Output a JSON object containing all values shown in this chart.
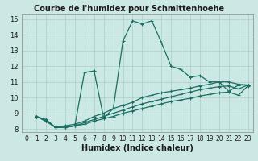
{
  "title": "Courbe de l'humidex pour Schmittenhoehe",
  "xlabel": "Humidex (Indice chaleur)",
  "bg_color": "#cce8e4",
  "grid_color": "#aacfcb",
  "line_color": "#1a6e62",
  "xlim": [
    -0.5,
    23.5
  ],
  "ylim": [
    7.8,
    15.3
  ],
  "xticks": [
    0,
    1,
    2,
    3,
    4,
    5,
    6,
    7,
    8,
    9,
    10,
    11,
    12,
    13,
    14,
    15,
    16,
    17,
    18,
    19,
    20,
    21,
    22,
    23
  ],
  "yticks": [
    8,
    9,
    10,
    11,
    12,
    13,
    14,
    15
  ],
  "line1_x": [
    1,
    2,
    3,
    4,
    5,
    6,
    7,
    8,
    9,
    10,
    11,
    12,
    13,
    14,
    15,
    16,
    17,
    18,
    19,
    20,
    21,
    22,
    23
  ],
  "line1_y": [
    8.8,
    8.6,
    8.1,
    8.1,
    8.2,
    11.6,
    11.7,
    8.7,
    9.3,
    13.6,
    14.9,
    14.7,
    14.9,
    13.5,
    12.0,
    11.8,
    11.3,
    11.4,
    11.0,
    11.0,
    10.4,
    10.8,
    10.8
  ],
  "line2_x": [
    1,
    2,
    3,
    4,
    5,
    6,
    7,
    8,
    9,
    10,
    11,
    12,
    13,
    14,
    15,
    16,
    17,
    18,
    19,
    20,
    21,
    22,
    23
  ],
  "line2_y": [
    8.8,
    8.5,
    8.1,
    8.2,
    8.3,
    8.5,
    8.8,
    9.0,
    9.3,
    9.5,
    9.7,
    10.0,
    10.15,
    10.3,
    10.4,
    10.5,
    10.6,
    10.75,
    10.85,
    11.0,
    11.0,
    10.85,
    10.8
  ],
  "line3_x": [
    1,
    2,
    3,
    4,
    5,
    6,
    7,
    8,
    9,
    10,
    11,
    12,
    13,
    14,
    15,
    16,
    17,
    18,
    19,
    20,
    21,
    22,
    23
  ],
  "line3_y": [
    8.8,
    8.5,
    8.1,
    8.1,
    8.2,
    8.4,
    8.6,
    8.8,
    9.0,
    9.2,
    9.4,
    9.6,
    9.75,
    9.9,
    10.05,
    10.2,
    10.35,
    10.5,
    10.6,
    10.7,
    10.75,
    10.55,
    10.8
  ],
  "line4_x": [
    1,
    2,
    3,
    4,
    5,
    6,
    7,
    8,
    9,
    10,
    11,
    12,
    13,
    14,
    15,
    16,
    17,
    18,
    19,
    20,
    21,
    22,
    23
  ],
  "line4_y": [
    8.8,
    8.5,
    8.1,
    8.1,
    8.2,
    8.3,
    8.5,
    8.65,
    8.8,
    9.0,
    9.15,
    9.3,
    9.45,
    9.6,
    9.75,
    9.85,
    9.95,
    10.1,
    10.2,
    10.3,
    10.35,
    10.15,
    10.75
  ],
  "marker_size": 3.5,
  "line_width": 0.9,
  "title_fontsize": 7,
  "xlabel_fontsize": 7,
  "tick_fontsize": 5.5
}
